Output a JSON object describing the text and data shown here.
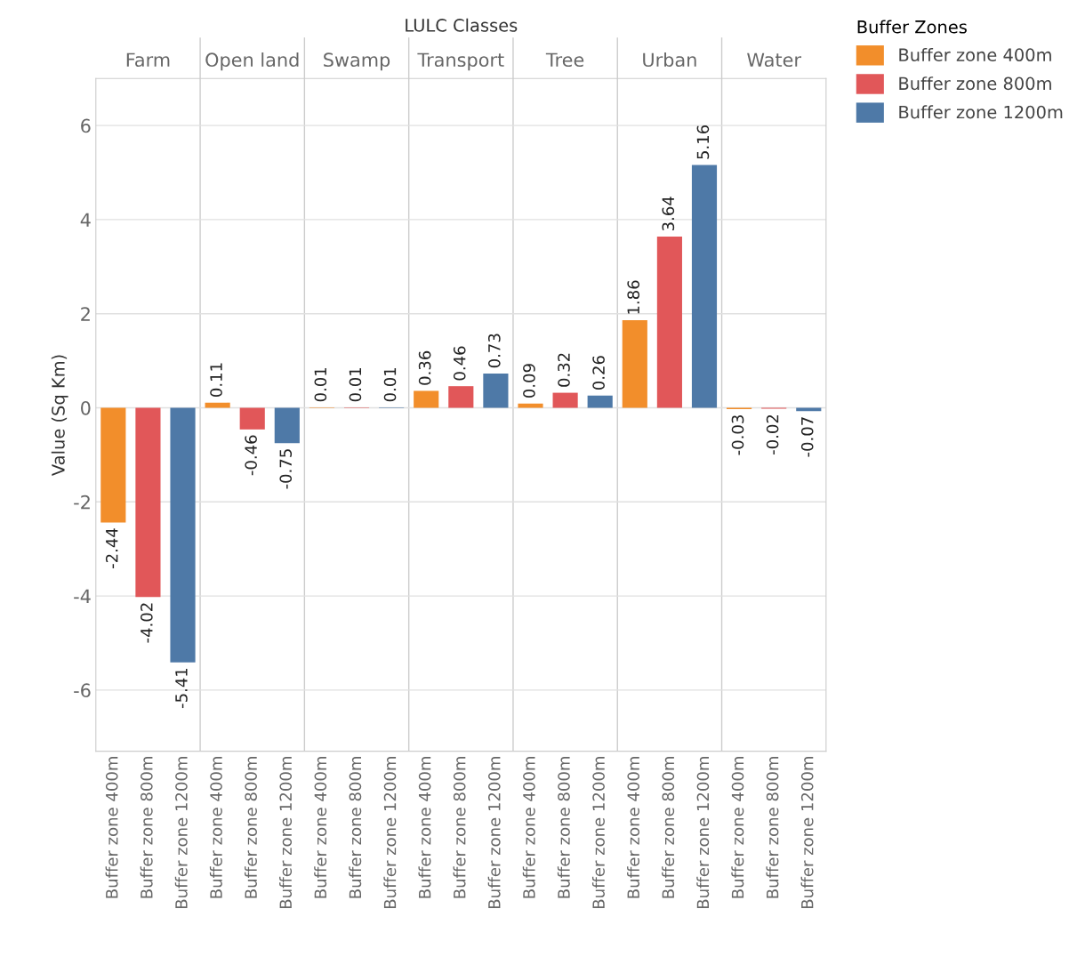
{
  "chart_data": {
    "type": "bar",
    "ylabel": "Value (Sq Km)",
    "annotations": [
      "LULC Classes",
      "Farm",
      "Open land",
      "Swamp",
      "Transport",
      "Tree",
      "Urban",
      "Water"
    ],
    "categories": [
      "Buffer zone 400m",
      "Buffer zone 800m",
      "Buffer zone 1200m",
      "Buffer zone 400m",
      "Buffer zone 800m",
      "Buffer zone 1200m",
      "Buffer zone 400m",
      "Buffer zone 800m",
      "Buffer zone 1200m",
      "Buffer zone 400m",
      "Buffer zone 800m",
      "Buffer zone 1200m",
      "Buffer zone 400m",
      "Buffer zone 800m",
      "Buffer zone 1200m",
      "Buffer zone 400m",
      "Buffer zone 800m",
      "Buffer zone 1200m",
      "Buffer zone 400m",
      "Buffer zone 800m",
      "Buffer zone 1200m"
    ],
    "series": [
      {
        "name": "Buffer zone 400m",
        "color": "#f28e2b",
        "values": [
          -2.44,
          null,
          null,
          0.11,
          null,
          null,
          0.01,
          null,
          null,
          0.36,
          null,
          null,
          0.09,
          null,
          null,
          1.86,
          null,
          null,
          -0.03,
          null,
          null
        ]
      },
      {
        "name": "Buffer zone 800m",
        "color": "#e15759",
        "values": [
          null,
          -4.02,
          null,
          null,
          -0.46,
          null,
          null,
          0.01,
          null,
          null,
          0.46,
          null,
          null,
          0.32,
          null,
          null,
          3.64,
          null,
          null,
          -0.02,
          null
        ]
      },
      {
        "name": "Buffer zone 1200m",
        "color": "#4e79a7",
        "values": [
          null,
          null,
          -5.41,
          null,
          null,
          -0.75,
          null,
          null,
          0.01,
          null,
          null,
          0.73,
          null,
          null,
          0.26,
          null,
          null,
          5.16,
          null,
          null,
          -0.07
        ]
      }
    ],
    "data_labels": true,
    "ylim": [
      -7.3,
      7.0
    ],
    "yticks": [
      -6,
      -4,
      -2,
      0,
      2,
      4,
      6
    ],
    "grid": "y",
    "legend": "right",
    "legend_title": "Buffer Zones"
  }
}
